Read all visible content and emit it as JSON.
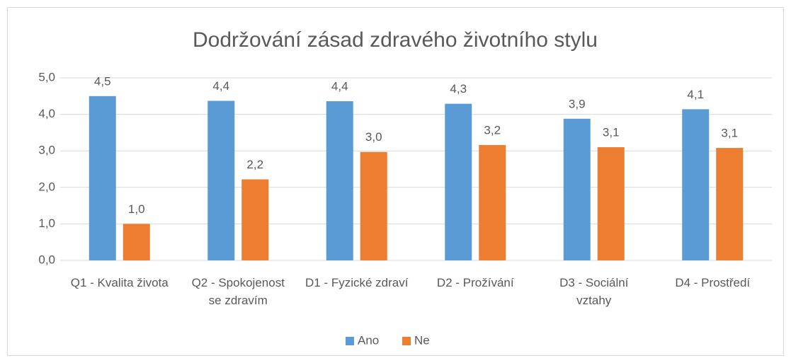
{
  "chart_data": {
    "type": "bar",
    "title": "Dodržování zásad zdravého životního stylu",
    "categories": [
      "Q1 - Kvalita života",
      "Q2 - Spokojenost se zdravím",
      "D1 - Fyzické zdraví",
      "D2 - Prožívání",
      "D3 - Sociální vztahy",
      "D4 - Prostředí"
    ],
    "series": [
      {
        "name": "Ano",
        "color": "#5b9bd5",
        "values": [
          4.5,
          4.37,
          4.36,
          4.29,
          3.88,
          4.14
        ],
        "value_labels": [
          "4,5",
          "4,4",
          "4,4",
          "4,3",
          "3,9",
          "4,1"
        ]
      },
      {
        "name": "Ne",
        "color": "#ed7d31",
        "values": [
          1.0,
          2.22,
          2.97,
          3.16,
          3.1,
          3.08
        ],
        "value_labels": [
          "1,0",
          "2,2",
          "3,0",
          "3,2",
          "3,1",
          "3,1"
        ]
      }
    ],
    "ylim": [
      0,
      5
    ],
    "yticks": [
      {
        "value": 0,
        "label": "0,0"
      },
      {
        "value": 1,
        "label": "1,0"
      },
      {
        "value": 2,
        "label": "2,0"
      },
      {
        "value": 3,
        "label": "3,0"
      },
      {
        "value": 4,
        "label": "4,0"
      },
      {
        "value": 5,
        "label": "5,0"
      }
    ],
    "grid": true,
    "legend": "bottom"
  }
}
